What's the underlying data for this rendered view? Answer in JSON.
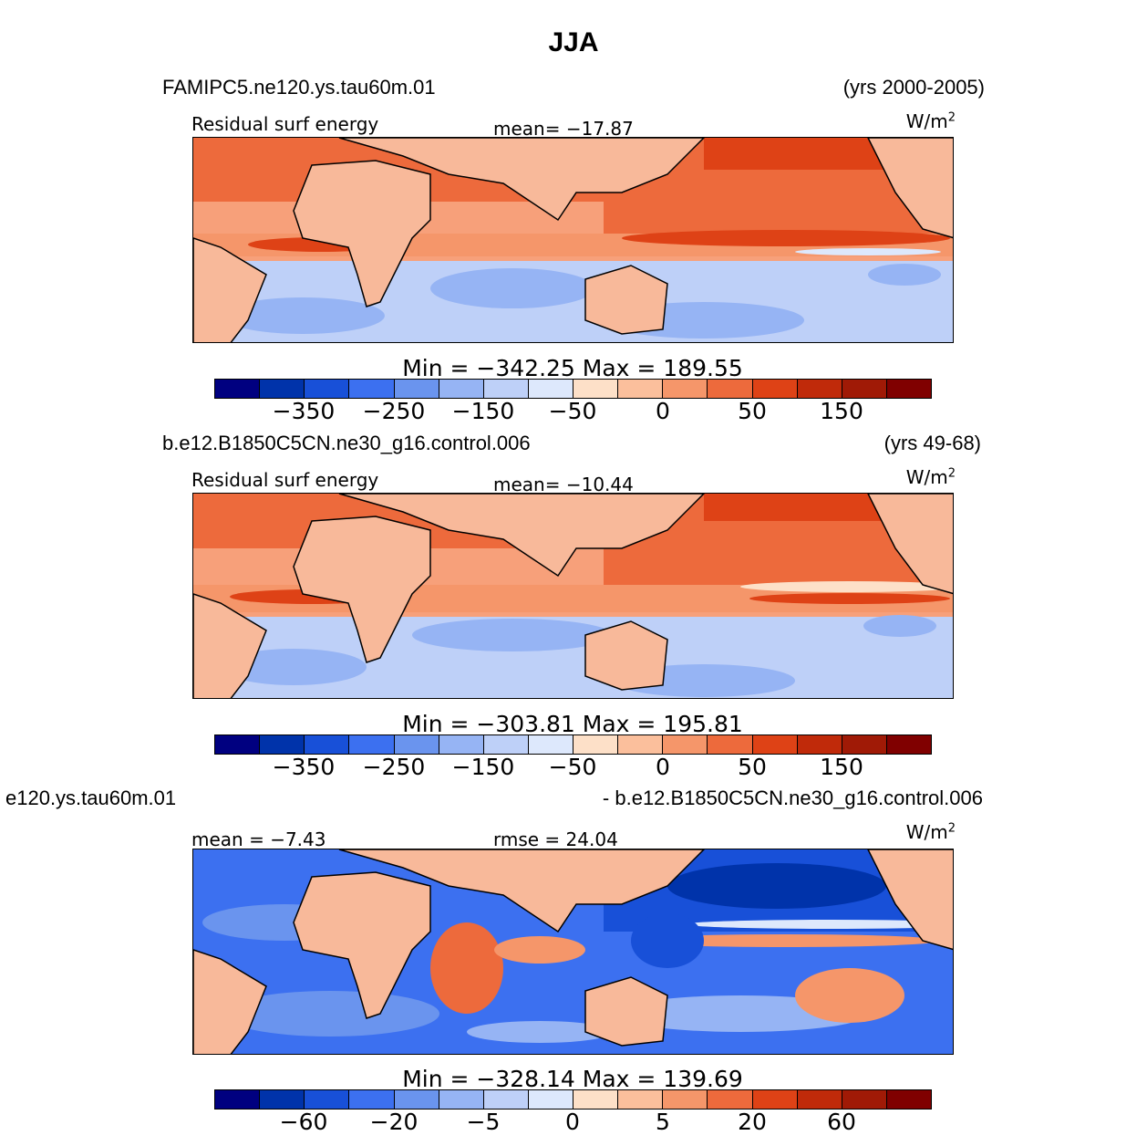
{
  "title": "JJA",
  "colors": {
    "scale": [
      "#000080",
      "#0033aa",
      "#1850d8",
      "#3c70f0",
      "#6a94ee",
      "#96b4f4",
      "#bed0f8",
      "#dde8fc",
      "#fde0c8",
      "#fbbf9c",
      "#f5966a",
      "#ed6a3c",
      "#de4216",
      "#c02a0a",
      "#a01a06",
      "#800000"
    ],
    "land": "#f8b99a",
    "coast": "#000000"
  },
  "panels": [
    {
      "case": "FAMIPC5.ne120.ys.tau60m.01",
      "years": "(yrs 2000-2005)",
      "left_label": "Residual surf energy",
      "center_label": "mean= −17.87",
      "units": "W/m",
      "units_sup": "2",
      "minmax": "Min = −342.25 Max = 189.55",
      "ticks": [
        "−350",
        "−250",
        "−150",
        "−50",
        "0",
        "50",
        "150"
      ]
    },
    {
      "case": "b.e12.B1850C5CN.ne30_g16.control.006",
      "years": "(yrs 49-68)",
      "left_label": "Residual surf energy",
      "center_label": "mean= −10.44",
      "units": "W/m",
      "units_sup": "2",
      "minmax": "Min = −303.81 Max = 195.81",
      "ticks": [
        "−350",
        "−250",
        "−150",
        "−50",
        "0",
        "50",
        "150"
      ]
    },
    {
      "case_left": "e120.ys.tau60m.01",
      "case_right": "- b.e12.B1850C5CN.ne30_g16.control.006",
      "left_label": "mean =  −7.43",
      "center_label": "rmse =  24.04",
      "units": "W/m",
      "units_sup": "2",
      "minmax": "Min = −328.14 Max = 139.69",
      "ticks": [
        "−60",
        "−20",
        "−5",
        "0",
        "5",
        "20",
        "60"
      ]
    }
  ]
}
